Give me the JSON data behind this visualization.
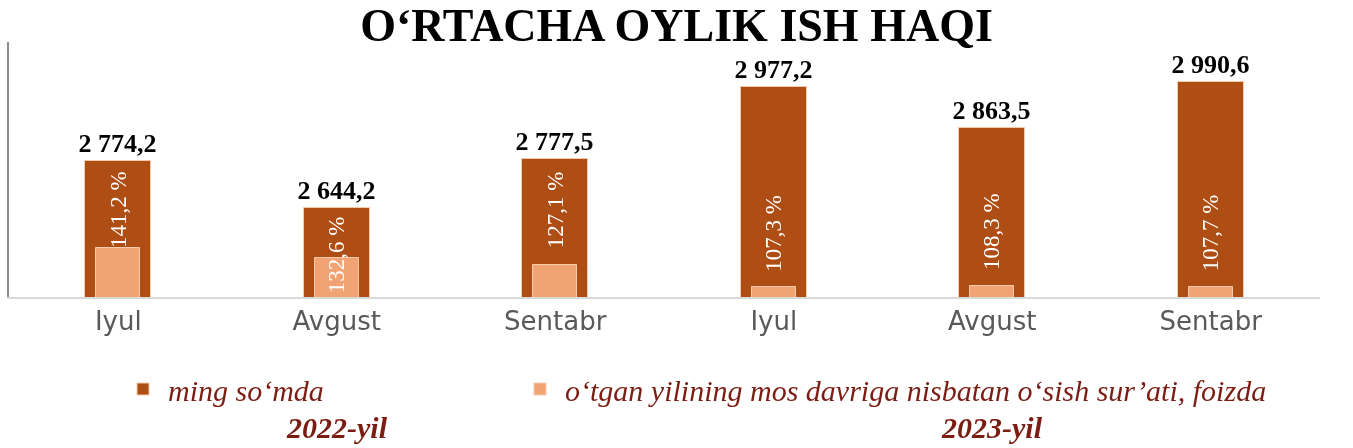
{
  "chart_data": {
    "type": "bar",
    "title": "O‘RTACHA OYLIK ISH HAQI",
    "categories": [
      "Iyul",
      "Avgust",
      "Sentabr",
      "Iyul",
      "Avgust",
      "Sentabr"
    ],
    "series": [
      {
        "name": "ming so‘mda",
        "color": "#ae4e14",
        "values": [
          2774.2,
          2644.2,
          2777.5,
          2977.2,
          2863.5,
          2990.6
        ],
        "value_labels": [
          "2 774,2",
          "2 644,2",
          "2 777,5",
          "2 977,2",
          "2 863,5",
          "2 990,6"
        ]
      },
      {
        "name": "o‘tgan yilining mos davriga nisbatan o‘sish sur’ati, foizda",
        "color": "#f1a374",
        "axis": "y2",
        "values": [
          141.2,
          132.6,
          127.1,
          107.3,
          108.3,
          107.7
        ],
        "value_labels": [
          "141,2 %",
          "132,6 %",
          "127,1 %",
          "107,3 %",
          "108,3 %",
          "107,7 %"
        ]
      }
    ],
    "ylim": [
      2400,
      3100
    ],
    "y2lim": [
      99,
      320
    ],
    "annotations": [
      "2022-yil",
      "2023-yil"
    ],
    "legend": "bottom",
    "tick_labels": "x"
  }
}
